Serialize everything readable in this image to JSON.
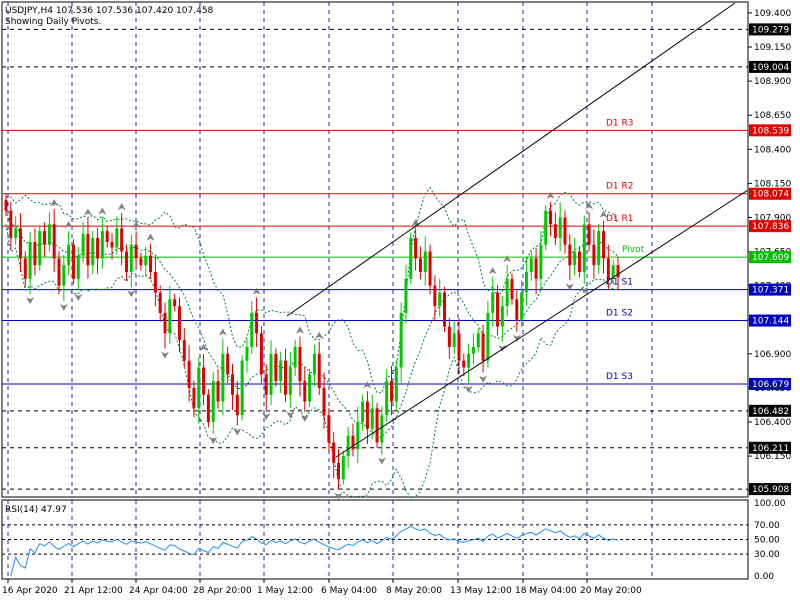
{
  "header": {
    "symbol_line": "USDJPY,H4  107.536 107.536 107.420 107.458",
    "subtitle": "Showing Daily Pivots."
  },
  "rsi_title": "RSI(14) 47.97",
  "colors": {
    "bull": "#00c800",
    "bear": "#e00000",
    "grid": "#2020c0",
    "resistance": "#e00000",
    "support": "#0000c0",
    "pivot": "#00c000",
    "band": "#008040",
    "channel": "#000000",
    "fractal": "#808080"
  },
  "chart_data": [
    {
      "type": "candlestick",
      "title": "USDJPY,H4",
      "yticks": [
        "109.400",
        "109.150",
        "108.900",
        "108.650",
        "108.400",
        "108.150",
        "107.900",
        "107.650",
        "107.400",
        "107.150",
        "106.900",
        "106.650",
        "106.400",
        "106.150",
        "105.900"
      ],
      "ylim": [
        105.85,
        109.48
      ],
      "xticks": [
        "16 Apr 2020",
        "21 Apr 12:00",
        "24 Apr 04:00",
        "28 Apr 20:00",
        "1 May 12:00",
        "6 May 04:00",
        "8 May 20:00",
        "13 May 12:00",
        "18 May 04:00",
        "20 May 20:00"
      ],
      "grid": true,
      "pivots": [
        {
          "name": "D1 R3",
          "value": 108.539,
          "label": "108.539",
          "kind": "resistance"
        },
        {
          "name": "D1 R2",
          "value": 108.074,
          "label": "108.074",
          "kind": "resistance"
        },
        {
          "name": "D1 R1",
          "value": 107.836,
          "label": "107.836",
          "kind": "resistance"
        },
        {
          "name": "Pivot",
          "value": 107.609,
          "label": "107.609",
          "kind": "pivot"
        },
        {
          "name": "D1 S1",
          "value": 107.371,
          "label": "107.371",
          "kind": "support"
        },
        {
          "name": "D1 S2",
          "value": 107.144,
          "label": "107.144",
          "kind": "support"
        },
        {
          "name": "D1 S3",
          "value": 106.679,
          "label": "106.679",
          "kind": "support"
        }
      ],
      "levels": [
        {
          "value": 109.279,
          "label": "109.279"
        },
        {
          "value": 109.004,
          "label": "109.004"
        },
        {
          "value": 106.482,
          "label": "106.482"
        },
        {
          "value": 106.211,
          "label": "106.211"
        },
        {
          "value": 105.908,
          "label": "105.908"
        }
      ],
      "current_price": 107.458,
      "close": [
        107.95,
        107.75,
        107.82,
        107.6,
        107.45,
        107.72,
        107.55,
        107.8,
        107.7,
        107.85,
        107.6,
        107.4,
        107.55,
        107.7,
        107.45,
        107.62,
        107.78,
        107.55,
        107.75,
        107.6,
        107.8,
        107.72,
        107.68,
        107.82,
        107.65,
        107.5,
        107.7,
        107.6,
        107.55,
        107.62,
        107.5,
        107.35,
        107.2,
        107.05,
        107.3,
        107.25,
        107.0,
        106.85,
        106.65,
        106.5,
        106.8,
        106.6,
        106.4,
        106.7,
        106.55,
        106.9,
        106.75,
        106.6,
        106.45,
        106.85,
        106.95,
        107.2,
        107.05,
        106.75,
        106.6,
        106.9,
        106.7,
        106.85,
        106.6,
        106.8,
        106.95,
        106.7,
        106.55,
        106.75,
        106.9,
        106.65,
        106.45,
        106.25,
        106.1,
        105.98,
        106.15,
        106.3,
        106.2,
        106.4,
        106.55,
        106.35,
        106.5,
        106.25,
        106.45,
        106.7,
        106.55,
        106.8,
        107.2,
        107.45,
        107.75,
        107.6,
        107.5,
        107.65,
        107.4,
        107.25,
        107.35,
        107.1,
        106.95,
        107.05,
        106.85,
        106.8,
        106.9,
        106.95,
        107.05,
        106.85,
        107.2,
        107.35,
        107.1,
        107.25,
        107.45,
        107.3,
        107.15,
        107.35,
        107.5,
        107.6,
        107.45,
        107.7,
        107.95,
        107.85,
        107.75,
        107.9,
        107.7,
        107.55,
        107.65,
        107.5,
        107.85,
        107.7,
        107.55,
        107.8,
        107.6,
        107.45,
        107.55,
        107.46
      ],
      "rsi": {
        "name": "RSI(14)",
        "value": 47.97,
        "yticks": [
          "100.00",
          "70.00",
          "50.00",
          "30.00",
          "0.00"
        ],
        "levels": [
          70,
          50,
          30
        ],
        "ylim": [
          0,
          100
        ]
      }
    }
  ]
}
